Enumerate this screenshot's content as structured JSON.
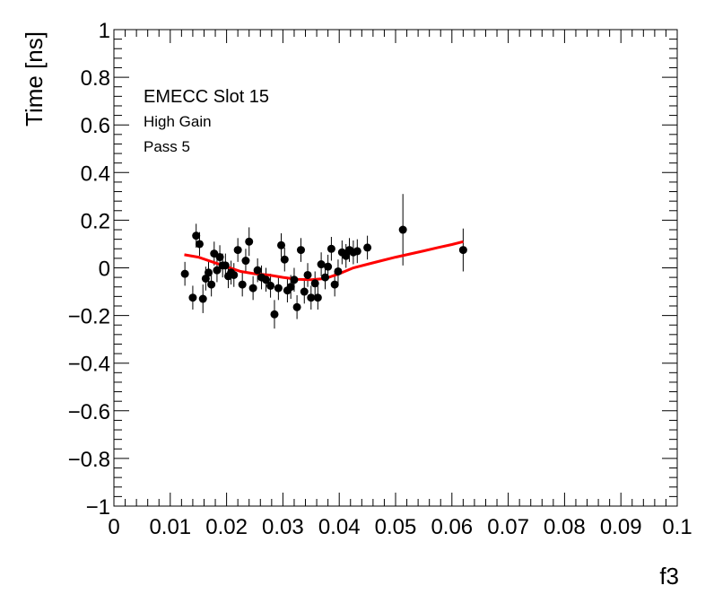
{
  "chart_data": {
    "type": "scatter",
    "xlabel": "f3",
    "ylabel": "Time [ns]",
    "xlim": [
      0,
      0.1
    ],
    "ylim": [
      -1,
      1
    ],
    "x_ticks": [
      0,
      0.01,
      0.02,
      0.03,
      0.04,
      0.05,
      0.06,
      0.07,
      0.08,
      0.09,
      0.1
    ],
    "x_tick_labels": [
      "0",
      "0.01",
      "0.02",
      "0.03",
      "0.04",
      "0.05",
      "0.06",
      "0.07",
      "0.08",
      "0.09",
      "0.1"
    ],
    "y_ticks": [
      -1,
      -0.8,
      -0.6,
      -0.4,
      -0.2,
      0,
      0.2,
      0.4,
      0.6,
      0.8,
      1
    ],
    "y_tick_labels": [
      "−1",
      "−0.8",
      "−0.6",
      "−0.4",
      "−0.2",
      "0",
      "0.2",
      "0.4",
      "0.6",
      "0.8",
      "1"
    ],
    "annotations": [
      "EMECC Slot 15",
      "High Gain",
      "Pass 5"
    ],
    "grid": false,
    "colors": {
      "points": "#000000",
      "fit": "#ff0000",
      "frame": "#000000"
    },
    "points": [
      {
        "x": 0.0126,
        "y": -0.025,
        "err": 0.05
      },
      {
        "x": 0.014,
        "y": -0.125,
        "err": 0.05
      },
      {
        "x": 0.0146,
        "y": 0.135,
        "err": 0.05
      },
      {
        "x": 0.0152,
        "y": 0.1,
        "err": 0.05
      },
      {
        "x": 0.0158,
        "y": -0.13,
        "err": 0.06
      },
      {
        "x": 0.0163,
        "y": -0.045,
        "err": 0.05
      },
      {
        "x": 0.0168,
        "y": -0.02,
        "err": 0.05
      },
      {
        "x": 0.0173,
        "y": -0.07,
        "err": 0.05
      },
      {
        "x": 0.0178,
        "y": 0.06,
        "err": 0.05
      },
      {
        "x": 0.0183,
        "y": -0.01,
        "err": 0.05
      },
      {
        "x": 0.0188,
        "y": 0.045,
        "err": 0.05
      },
      {
        "x": 0.0193,
        "y": 0.01,
        "err": 0.05
      },
      {
        "x": 0.0198,
        "y": 0.01,
        "err": 0.05
      },
      {
        "x": 0.0203,
        "y": -0.035,
        "err": 0.05
      },
      {
        "x": 0.0208,
        "y": -0.02,
        "err": 0.05
      },
      {
        "x": 0.0213,
        "y": -0.03,
        "err": 0.05
      },
      {
        "x": 0.022,
        "y": 0.075,
        "err": 0.05
      },
      {
        "x": 0.0228,
        "y": -0.07,
        "err": 0.05
      },
      {
        "x": 0.0234,
        "y": 0.03,
        "err": 0.05
      },
      {
        "x": 0.024,
        "y": 0.11,
        "err": 0.06
      },
      {
        "x": 0.0247,
        "y": -0.085,
        "err": 0.05
      },
      {
        "x": 0.0255,
        "y": -0.01,
        "err": 0.05
      },
      {
        "x": 0.0262,
        "y": -0.04,
        "err": 0.05
      },
      {
        "x": 0.027,
        "y": -0.05,
        "err": 0.05
      },
      {
        "x": 0.0278,
        "y": -0.075,
        "err": 0.05
      },
      {
        "x": 0.0285,
        "y": -0.195,
        "err": 0.06
      },
      {
        "x": 0.0292,
        "y": -0.085,
        "err": 0.05
      },
      {
        "x": 0.0297,
        "y": 0.095,
        "err": 0.05
      },
      {
        "x": 0.0303,
        "y": 0.035,
        "err": 0.05
      },
      {
        "x": 0.0308,
        "y": -0.095,
        "err": 0.05
      },
      {
        "x": 0.0314,
        "y": -0.08,
        "err": 0.05
      },
      {
        "x": 0.032,
        "y": -0.05,
        "err": 0.05
      },
      {
        "x": 0.0325,
        "y": -0.165,
        "err": 0.05
      },
      {
        "x": 0.0332,
        "y": 0.075,
        "err": 0.05
      },
      {
        "x": 0.0338,
        "y": -0.1,
        "err": 0.05
      },
      {
        "x": 0.0344,
        "y": -0.03,
        "err": 0.05
      },
      {
        "x": 0.035,
        "y": -0.125,
        "err": 0.05
      },
      {
        "x": 0.0357,
        "y": -0.065,
        "err": 0.05
      },
      {
        "x": 0.0362,
        "y": -0.125,
        "err": 0.05
      },
      {
        "x": 0.0368,
        "y": 0.015,
        "err": 0.05
      },
      {
        "x": 0.0375,
        "y": -0.04,
        "err": 0.05
      },
      {
        "x": 0.038,
        "y": 0.005,
        "err": 0.05
      },
      {
        "x": 0.0386,
        "y": 0.08,
        "err": 0.05
      },
      {
        "x": 0.0392,
        "y": -0.07,
        "err": 0.05
      },
      {
        "x": 0.0398,
        "y": -0.015,
        "err": 0.05
      },
      {
        "x": 0.0405,
        "y": 0.065,
        "err": 0.05
      },
      {
        "x": 0.0412,
        "y": 0.05,
        "err": 0.05
      },
      {
        "x": 0.0418,
        "y": 0.075,
        "err": 0.05
      },
      {
        "x": 0.0425,
        "y": 0.065,
        "err": 0.05
      },
      {
        "x": 0.0432,
        "y": 0.07,
        "err": 0.05
      },
      {
        "x": 0.045,
        "y": 0.085,
        "err": 0.05
      },
      {
        "x": 0.0513,
        "y": 0.16,
        "err": 0.15
      },
      {
        "x": 0.062,
        "y": 0.075,
        "err": 0.09
      }
    ],
    "fit": {
      "x": [
        0.0125,
        0.015,
        0.0175,
        0.02,
        0.0225,
        0.025,
        0.0275,
        0.03,
        0.0325,
        0.035,
        0.0375,
        0.04,
        0.0425,
        0.045,
        0.0475,
        0.05,
        0.0525,
        0.055,
        0.0575,
        0.06,
        0.062
      ],
      "y": [
        0.055,
        0.045,
        0.025,
        0.005,
        -0.015,
        -0.025,
        -0.03,
        -0.04,
        -0.048,
        -0.05,
        -0.045,
        -0.025,
        0.0,
        0.015,
        0.03,
        0.045,
        0.058,
        0.071,
        0.085,
        0.098,
        0.11
      ]
    }
  }
}
